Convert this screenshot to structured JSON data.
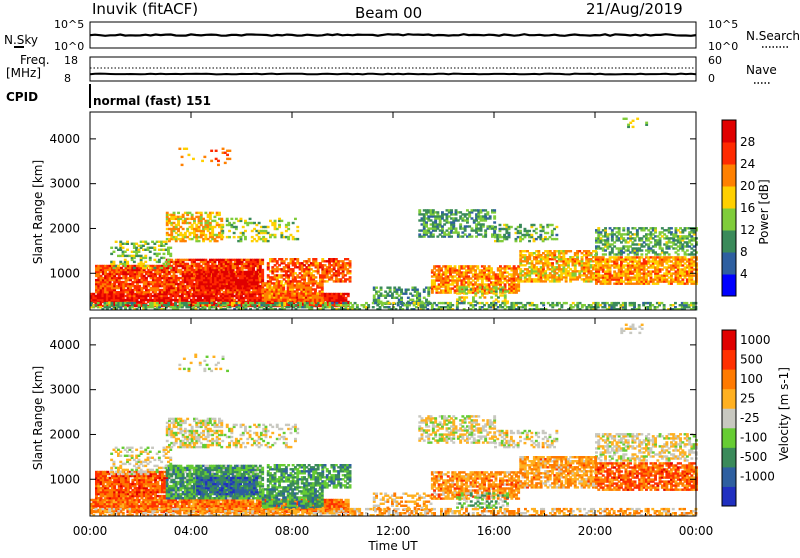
{
  "header": {
    "station": "Inuvik (fitACF)",
    "beam": "Beam 00",
    "date": "21/Aug/2019"
  },
  "panels": {
    "nsky_label": "N.Sky",
    "nsearch_label": "N.Search",
    "scale_top": "10^5",
    "scale_bottom": "10^0",
    "freq_label_1": "Freq.",
    "freq_label_2": "[MHz]",
    "freq_ticks": [
      "18",
      "8"
    ],
    "nave_ticks": [
      "60",
      "0"
    ],
    "nave_label": "Nave",
    "cpid_label": "CPID",
    "cpid_value": "normal (fast) 151"
  },
  "chart_data": [
    {
      "type": "heatmap",
      "name": "power",
      "ylabel": "Slant Range [km]",
      "xlabel": "Time UT",
      "ylim": [
        180,
        4600
      ],
      "yticks": [
        1000,
        2000,
        3000,
        4000
      ],
      "colorbar_label": "Power [dB]",
      "colorbar_ticks": [
        "28",
        "24",
        "20",
        "16",
        "12",
        "8",
        "4"
      ],
      "colors": [
        "#0000ff",
        "#2e5fa0",
        "#3a8a5a",
        "#7fcc3a",
        "#ffd000",
        "#ff8000",
        "#ff2a00",
        "#e00000"
      ]
    },
    {
      "type": "heatmap",
      "name": "velocity",
      "ylabel": "Slant Range [km]",
      "xlabel": "Time UT",
      "ylim": [
        180,
        4600
      ],
      "yticks": [
        1000,
        2000,
        3000,
        4000
      ],
      "colorbar_label": "Velocity [m s-1]",
      "colorbar_ticks": [
        "1000",
        "500",
        "100",
        "25",
        "-25",
        "-100",
        "-500",
        "-1000"
      ],
      "colors": [
        "#2030c0",
        "#2e5fa0",
        "#3a8a5a",
        "#66cc33",
        "#c8c8c0",
        "#ffb020",
        "#ff7a00",
        "#ff3000",
        "#e00000"
      ]
    }
  ],
  "xaxis": {
    "ticks": [
      "00:00",
      "04:00",
      "08:00",
      "12:00",
      "16:00",
      "20:00",
      "00:00"
    ],
    "label": "Time UT"
  }
}
